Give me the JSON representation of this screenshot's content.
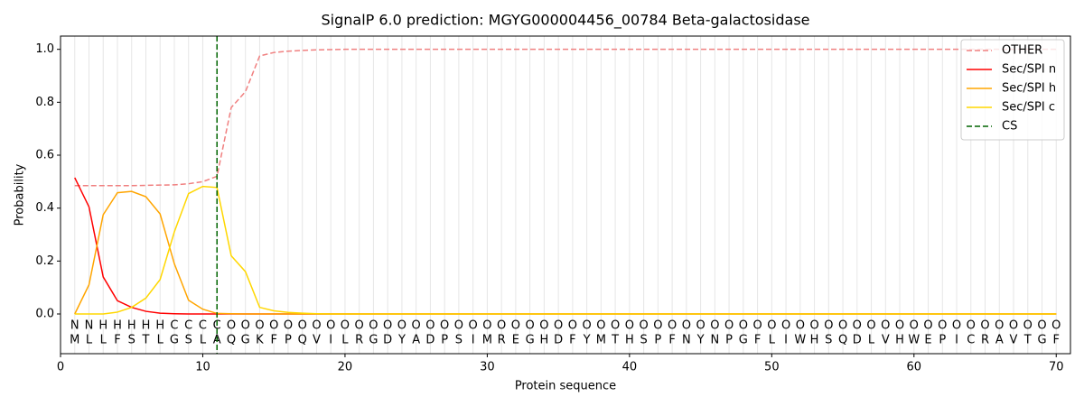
{
  "chart_data": {
    "type": "line",
    "title": "SignalP 6.0 prediction: MGYG000004456_00784 Beta-galactosidase",
    "x_label": "Protein sequence",
    "y_label": "Probability",
    "xlim": [
      0,
      71
    ],
    "ylim": [
      -0.15,
      1.05
    ],
    "xticks": [
      0,
      10,
      20,
      30,
      40,
      50,
      60,
      70
    ],
    "yticks": [
      {
        "value": 0,
        "label": "0.0"
      },
      {
        "value": 0.2,
        "label": "0.2"
      },
      {
        "value": 0.4,
        "label": "0.4"
      },
      {
        "value": 0.6,
        "label": "0.6"
      },
      {
        "value": 0.8,
        "label": "0.8"
      },
      {
        "value": 1.0,
        "label": "1.0"
      }
    ],
    "grid": true,
    "legend": "upper right",
    "x": [
      1,
      2,
      3,
      4,
      5,
      6,
      7,
      8,
      9,
      10,
      11,
      12,
      13,
      14,
      15,
      16,
      17,
      18,
      19,
      20,
      21,
      22,
      23,
      24,
      25,
      26,
      27,
      28,
      29,
      30,
      31,
      32,
      33,
      34,
      35,
      36,
      37,
      38,
      39,
      40,
      41,
      42,
      43,
      44,
      45,
      46,
      47,
      48,
      49,
      50,
      51,
      52,
      53,
      54,
      55,
      56,
      57,
      58,
      59,
      60,
      61,
      62,
      63,
      64,
      65,
      66,
      67,
      68,
      69,
      70
    ],
    "residues": [
      "M",
      "L",
      "L",
      "F",
      "S",
      "T",
      "L",
      "G",
      "S",
      "L",
      "A",
      "Q",
      "G",
      "K",
      "F",
      "P",
      "Q",
      "V",
      "I",
      "L",
      "R",
      "G",
      "D",
      "Y",
      "A",
      "D",
      "P",
      "S",
      "I",
      "M",
      "R",
      "E",
      "G",
      "H",
      "D",
      "F",
      "Y",
      "M",
      "T",
      "H",
      "S",
      "P",
      "F",
      "N",
      "Y",
      "N",
      "P",
      "G",
      "F",
      "L",
      "I",
      "W",
      "H",
      "S",
      "Q",
      "D",
      "L",
      "V",
      "H",
      "W",
      "E",
      "P",
      "I",
      "C",
      "R",
      "A",
      "V",
      "T",
      "G",
      "F"
    ],
    "regions": [
      "N",
      "N",
      "H",
      "H",
      "H",
      "H",
      "H",
      "C",
      "C",
      "C",
      "C",
      "O",
      "O",
      "O",
      "O",
      "O",
      "O",
      "O",
      "O",
      "O",
      "O",
      "O",
      "O",
      "O",
      "O",
      "O",
      "O",
      "O",
      "O",
      "O",
      "O",
      "O",
      "O",
      "O",
      "O",
      "O",
      "O",
      "O",
      "O",
      "O",
      "O",
      "O",
      "O",
      "O",
      "O",
      "O",
      "O",
      "O",
      "O",
      "O",
      "O",
      "O",
      "O",
      "O",
      "O",
      "O",
      "O",
      "O",
      "O",
      "O",
      "O",
      "O",
      "O",
      "O",
      "O",
      "O",
      "O",
      "O",
      "O",
      "O"
    ],
    "region_colors": {
      "N": "#ff0000",
      "H": "#ffa500",
      "C": "#ffd700",
      "O": "#808080"
    },
    "series": [
      {
        "name": "OTHER",
        "color": "#f08080",
        "dash": true,
        "values": [
          0.485,
          0.485,
          0.485,
          0.485,
          0.485,
          0.486,
          0.487,
          0.488,
          0.492,
          0.5,
          0.52,
          0.78,
          0.84,
          0.975,
          0.988,
          0.993,
          0.996,
          0.998,
          0.999,
          1,
          1,
          1,
          1,
          1,
          1,
          1,
          1,
          1,
          1,
          1,
          1,
          1,
          1,
          1,
          1,
          1,
          1,
          1,
          1,
          1,
          1,
          1,
          1,
          1,
          1,
          1,
          1,
          1,
          1,
          1,
          1,
          1,
          1,
          1,
          1,
          1,
          1,
          1,
          1,
          1,
          1,
          1,
          1,
          1,
          1,
          1,
          1,
          1,
          1,
          1
        ]
      },
      {
        "name": "Sec/SPI n",
        "color": "#ff0000",
        "values": [
          0.515,
          0.405,
          0.14,
          0.05,
          0.025,
          0.01,
          0.003,
          0.001,
          0,
          0,
          0,
          0,
          0,
          0,
          0,
          0,
          0,
          0,
          0,
          0,
          0,
          0,
          0,
          0,
          0,
          0,
          0,
          0,
          0,
          0,
          0,
          0,
          0,
          0,
          0,
          0,
          0,
          0,
          0,
          0,
          0,
          0,
          0,
          0,
          0,
          0,
          0,
          0,
          0,
          0,
          0,
          0,
          0,
          0,
          0,
          0,
          0,
          0,
          0,
          0,
          0,
          0,
          0,
          0,
          0,
          0,
          0,
          0,
          0,
          0
        ]
      },
      {
        "name": "Sec/SPI h",
        "color": "#ffa500",
        "values": [
          0,
          0.11,
          0.375,
          0.458,
          0.463,
          0.443,
          0.378,
          0.19,
          0.052,
          0.018,
          0.002,
          0.001,
          0,
          0,
          0,
          0,
          0,
          0,
          0,
          0,
          0,
          0,
          0,
          0,
          0,
          0,
          0,
          0,
          0,
          0,
          0,
          0,
          0,
          0,
          0,
          0,
          0,
          0,
          0,
          0,
          0,
          0,
          0,
          0,
          0,
          0,
          0,
          0,
          0,
          0,
          0,
          0,
          0,
          0,
          0,
          0,
          0,
          0,
          0,
          0,
          0,
          0,
          0,
          0,
          0,
          0,
          0,
          0,
          0,
          0
        ]
      },
      {
        "name": "Sec/SPI c",
        "color": "#ffd700",
        "values": [
          0,
          0,
          0,
          0.007,
          0.025,
          0.06,
          0.13,
          0.31,
          0.455,
          0.482,
          0.478,
          0.22,
          0.16,
          0.025,
          0.012,
          0.006,
          0.003,
          0.001,
          0,
          0,
          0,
          0,
          0,
          0,
          0,
          0,
          0,
          0,
          0,
          0,
          0,
          0,
          0,
          0,
          0,
          0,
          0,
          0,
          0,
          0,
          0,
          0,
          0,
          0,
          0,
          0,
          0,
          0,
          0,
          0,
          0,
          0,
          0,
          0,
          0,
          0,
          0,
          0,
          0,
          0,
          0,
          0,
          0,
          0,
          0,
          0,
          0,
          0,
          0,
          0
        ]
      }
    ],
    "cs": {
      "name": "CS",
      "x": 11,
      "color": "#006400"
    }
  }
}
